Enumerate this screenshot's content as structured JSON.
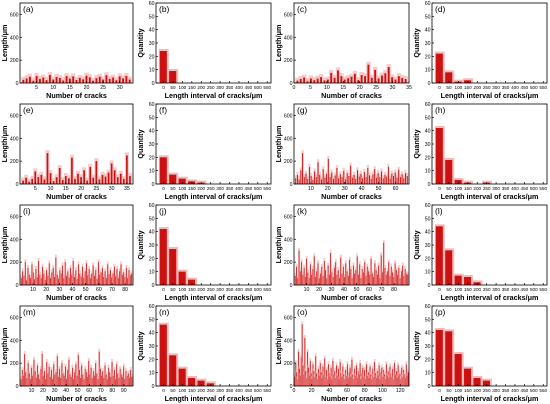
{
  "figure": {
    "colors": {
      "bar_dark": "#cc1111",
      "bar_light": "#f7b8b8",
      "axis": "#000000"
    }
  },
  "chart_data": [
    {
      "panel": "a",
      "type": "bar",
      "xlabel": "Number of cracks",
      "ylabel": "Length/μm",
      "xticks": [
        5,
        10,
        15,
        20,
        25,
        30
      ],
      "yticks": [
        0,
        200,
        400,
        600
      ],
      "xlim": [
        0,
        34
      ],
      "ylim": [
        0,
        700
      ],
      "n": 33,
      "values": [
        28,
        40,
        55,
        20,
        62,
        35,
        48,
        25,
        70,
        30,
        52,
        44,
        22,
        60,
        38,
        58,
        26,
        45,
        32,
        64,
        50,
        20,
        42,
        55,
        30,
        68,
        36,
        48,
        24,
        58,
        40,
        62,
        30
      ]
    },
    {
      "panel": "b",
      "type": "bar",
      "xlabel": "Length interval of cracks/μm",
      "ylabel": "Quantity",
      "categories": [
        0,
        50,
        100,
        150,
        200,
        250,
        300,
        350,
        400,
        450,
        500,
        550
      ],
      "yticks": [
        0,
        10,
        20,
        30,
        40,
        50,
        60
      ],
      "ylim": [
        0,
        60
      ],
      "values": [
        24,
        9,
        0,
        0,
        0,
        0,
        0,
        0,
        0,
        0,
        0,
        0
      ]
    },
    {
      "panel": "c",
      "type": "bar",
      "xlabel": "Number of cracks",
      "ylabel": "Length/μm",
      "xticks": [
        0,
        5,
        10,
        15,
        20,
        25,
        30,
        35
      ],
      "yticks": [
        0,
        200,
        400,
        600
      ],
      "xlim": [
        0,
        35
      ],
      "ylim": [
        0,
        700
      ],
      "n": 33,
      "values": [
        20,
        35,
        48,
        15,
        40,
        25,
        38,
        52,
        22,
        30,
        88,
        45,
        110,
        60,
        30,
        42,
        55,
        80,
        25,
        70,
        60,
        160,
        45,
        115,
        40,
        65,
        85,
        140,
        50,
        30,
        60,
        45,
        35
      ]
    },
    {
      "panel": "d",
      "type": "bar",
      "xlabel": "Length interval of cracks/μm",
      "ylabel": "Quantity",
      "categories": [
        0,
        50,
        100,
        150,
        200,
        250,
        300,
        350,
        400,
        450,
        500,
        550
      ],
      "yticks": [
        0,
        10,
        20,
        30,
        40,
        50,
        60
      ],
      "ylim": [
        0,
        60
      ],
      "values": [
        22,
        8,
        1,
        2,
        0,
        0,
        0,
        0,
        0,
        0,
        0,
        0
      ]
    },
    {
      "panel": "e",
      "type": "bar",
      "xlabel": "Number of cracks",
      "ylabel": "Length/μm",
      "xticks": [
        5,
        10,
        15,
        20,
        25,
        30,
        35
      ],
      "yticks": [
        0,
        200,
        400,
        600
      ],
      "xlim": [
        0,
        37
      ],
      "ylim": [
        0,
        700
      ],
      "n": 36,
      "values": [
        30,
        55,
        20,
        45,
        110,
        60,
        80,
        40,
        270,
        95,
        25,
        60,
        140,
        35,
        70,
        50,
        230,
        45,
        90,
        60,
        120,
        30,
        150,
        55,
        200,
        40,
        80,
        65,
        100,
        180,
        120,
        60,
        90,
        45,
        250,
        70
      ]
    },
    {
      "panel": "f",
      "type": "bar",
      "xlabel": "Length interval of cracks/μm",
      "ylabel": "Quantity",
      "categories": [
        0,
        50,
        100,
        150,
        200,
        250,
        300,
        350,
        400,
        450,
        500,
        550
      ],
      "yticks": [
        0,
        10,
        20,
        30,
        40,
        50,
        60
      ],
      "ylim": [
        0,
        60
      ],
      "values": [
        20,
        7,
        4,
        2,
        1,
        0,
        0,
        0,
        0,
        0,
        0,
        0
      ]
    },
    {
      "panel": "g",
      "type": "bar",
      "xlabel": "Number of cracks",
      "ylabel": "Length/μm",
      "xticks": [
        10,
        20,
        30,
        40,
        50,
        60
      ],
      "yticks": [
        0,
        200,
        400,
        600
      ],
      "xlim": [
        0,
        68
      ],
      "ylim": [
        0,
        700
      ],
      "n": 66,
      "values": [
        50,
        80,
        40,
        120,
        270,
        60,
        90,
        45,
        150,
        70,
        35,
        110,
        60,
        190,
        80,
        40,
        130,
        55,
        90,
        220,
        60,
        100,
        45,
        75,
        140,
        50,
        85,
        60,
        115,
        40,
        95,
        70,
        160,
        55,
        80,
        45,
        120,
        65,
        90,
        50,
        105,
        60,
        140,
        75,
        45,
        85,
        130,
        55,
        95,
        60,
        110,
        50,
        80,
        65,
        150,
        45,
        90,
        70,
        100,
        55,
        125,
        60,
        85,
        50,
        95,
        70
      ]
    },
    {
      "panel": "h",
      "type": "bar",
      "xlabel": "Length interval of cracks/μm",
      "ylabel": "Quantity",
      "categories": [
        0,
        50,
        100,
        150,
        200,
        250,
        300,
        350,
        400,
        450,
        500,
        550
      ],
      "yticks": [
        0,
        10,
        20,
        30,
        40,
        50,
        60
      ],
      "ylim": [
        0,
        60
      ],
      "values": [
        42,
        18,
        3,
        1,
        0,
        1,
        0,
        0,
        0,
        0,
        0,
        0
      ]
    },
    {
      "panel": "i",
      "type": "bar",
      "xlabel": "Number of cracks",
      "ylabel": "Length/μm",
      "xticks": [
        10,
        20,
        30,
        40,
        50,
        60,
        70,
        80
      ],
      "yticks": [
        0,
        200,
        400,
        600
      ],
      "xlim": [
        0,
        86
      ],
      "ylim": [
        0,
        700
      ],
      "n": 84,
      "values": [
        60,
        120,
        80,
        200,
        40,
        150,
        90,
        60,
        180,
        110,
        50,
        140,
        70,
        210,
        90,
        60,
        160,
        100,
        45,
        130,
        80,
        190,
        60,
        110,
        150,
        70,
        240,
        90,
        55,
        130,
        100,
        170,
        60,
        200,
        80,
        120,
        65,
        150,
        90,
        210,
        70,
        130,
        55,
        180,
        100,
        75,
        160,
        60,
        120,
        190,
        85,
        140,
        60,
        100,
        170,
        80,
        130,
        55,
        200,
        90,
        110,
        150,
        70,
        120,
        60,
        180,
        95,
        130,
        65,
        100,
        160,
        75,
        140,
        60,
        120,
        180,
        90,
        110,
        70,
        150,
        60,
        130,
        85,
        100
      ]
    },
    {
      "panel": "j",
      "type": "bar",
      "xlabel": "Length interval of cracks/μm",
      "ylabel": "Quantity",
      "categories": [
        0,
        50,
        100,
        150,
        200,
        250,
        300,
        350,
        400,
        450,
        500,
        550
      ],
      "yticks": [
        0,
        10,
        20,
        30,
        40,
        50,
        60
      ],
      "ylim": [
        0,
        60
      ],
      "values": [
        42,
        27,
        10,
        4,
        0,
        0,
        0,
        0,
        0,
        0,
        0,
        0
      ]
    },
    {
      "panel": "k",
      "type": "bar",
      "xlabel": "Number of cracks",
      "ylabel": "Length/μm",
      "xticks": [
        10,
        20,
        30,
        40,
        50,
        60,
        70,
        80
      ],
      "yticks": [
        0,
        200,
        400,
        600
      ],
      "xlim": [
        0,
        92
      ],
      "ylim": [
        0,
        700
      ],
      "n": 90,
      "values": [
        80,
        160,
        60,
        300,
        120,
        200,
        90,
        150,
        70,
        230,
        110,
        60,
        180,
        90,
        140,
        250,
        70,
        120,
        190,
        60,
        100,
        160,
        80,
        210,
        130,
        60,
        170,
        90,
        280,
        110,
        70,
        150,
        200,
        90,
        130,
        60,
        240,
        100,
        160,
        70,
        190,
        120,
        80,
        220,
        140,
        60,
        170,
        100,
        130,
        250,
        90,
        180,
        60,
        140,
        110,
        200,
        80,
        160,
        120,
        90,
        230,
        100,
        70,
        190,
        130,
        90,
        170,
        60,
        260,
        110,
        370,
        150,
        90,
        120,
        200,
        80,
        160,
        110,
        70,
        190,
        130,
        90,
        150,
        60,
        120,
        170,
        80,
        140,
        100,
        90
      ]
    },
    {
      "panel": "l",
      "type": "bar",
      "xlabel": "Length interval of cracks/μm",
      "ylabel": "Quantity",
      "categories": [
        0,
        50,
        100,
        150,
        200,
        250,
        300,
        350,
        400,
        450,
        500,
        550
      ],
      "yticks": [
        0,
        10,
        20,
        30,
        40,
        50,
        60
      ],
      "ylim": [
        0,
        60
      ],
      "values": [
        44,
        26,
        7,
        6,
        2,
        0,
        0,
        0,
        0,
        0,
        0,
        0
      ]
    },
    {
      "panel": "m",
      "type": "bar",
      "xlabel": "Number of cracks",
      "ylabel": "Length/μm",
      "xticks": [
        10,
        20,
        30,
        40,
        50,
        60,
        70,
        80,
        90
      ],
      "yticks": [
        0,
        200,
        400,
        600
      ],
      "xlim": [
        0,
        98
      ],
      "ylim": [
        0,
        700
      ],
      "n": 96,
      "values": [
        60,
        140,
        90,
        280,
        120,
        70,
        200,
        110,
        60,
        160,
        90,
        230,
        130,
        70,
        180,
        100,
        60,
        150,
        280,
        90,
        130,
        60,
        210,
        110,
        170,
        80,
        140,
        60,
        190,
        100,
        120,
        260,
        80,
        150,
        70,
        200,
        110,
        90,
        170,
        60,
        140,
        230,
        100,
        80,
        160,
        60,
        120,
        190,
        90,
        270,
        140,
        70,
        180,
        100,
        60,
        150,
        120,
        80,
        220,
        100,
        160,
        70,
        130,
        90,
        200,
        110,
        60,
        300,
        150,
        90,
        130,
        70,
        180,
        100,
        60,
        160,
        120,
        80,
        210,
        90,
        140,
        60,
        190,
        110,
        70,
        150,
        100,
        80,
        170,
        60,
        130,
        90,
        110,
        70,
        140,
        80
      ]
    },
    {
      "panel": "n",
      "type": "bar",
      "xlabel": "Length interval of cracks/μm",
      "ylabel": "Quantity",
      "categories": [
        0,
        50,
        100,
        150,
        200,
        250,
        300,
        350,
        400,
        450,
        500,
        550
      ],
      "yticks": [
        0,
        10,
        20,
        30,
        40,
        50,
        60
      ],
      "ylim": [
        0,
        60
      ],
      "values": [
        46,
        23,
        13,
        6,
        4,
        2,
        0,
        0,
        0,
        0,
        0,
        0
      ]
    },
    {
      "panel": "o",
      "type": "bar",
      "xlabel": "Number of cracks",
      "ylabel": "Length/μm",
      "xticks": [
        0,
        20,
        40,
        60,
        80,
        100,
        120
      ],
      "yticks": [
        0,
        200,
        400,
        600
      ],
      "xlim": [
        0,
        130
      ],
      "ylim": [
        0,
        700
      ],
      "n": 126,
      "values": [
        80,
        200,
        120,
        60,
        300,
        150,
        90,
        250,
        540,
        180,
        100,
        420,
        130,
        70,
        300,
        160,
        90,
        220,
        110,
        60,
        190,
        130,
        80,
        260,
        110,
        60,
        150,
        90,
        200,
        120,
        70,
        170,
        100,
        240,
        80,
        140,
        60,
        190,
        110,
        80,
        160,
        60,
        220,
        100,
        130,
        70,
        180,
        90,
        150,
        60,
        210,
        110,
        80,
        170,
        100,
        60,
        140,
        90,
        190,
        70,
        120,
        160,
        80,
        230,
        100,
        60,
        150,
        90,
        180,
        70,
        130,
        100,
        200,
        60,
        110,
        160,
        80,
        140,
        60,
        190,
        90,
        120,
        70,
        170,
        100,
        60,
        150,
        80,
        210,
        110,
        70,
        130,
        90,
        180,
        60,
        120,
        160,
        80,
        140,
        100,
        60,
        190,
        90,
        130,
        70,
        170,
        110,
        80,
        150,
        60,
        200,
        100,
        130,
        70,
        180,
        90,
        110,
        60,
        160,
        80,
        140,
        100,
        70,
        190,
        90,
        120
      ]
    },
    {
      "panel": "p",
      "type": "bar",
      "xlabel": "Length interval of cracks/μm",
      "ylabel": "Quantity",
      "categories": [
        0,
        50,
        100,
        150,
        200,
        250,
        300,
        350,
        400,
        450,
        500,
        550
      ],
      "yticks": [
        0,
        10,
        20,
        30,
        40,
        50,
        60
      ],
      "ylim": [
        0,
        60
      ],
      "values": [
        42,
        41,
        24,
        13,
        6,
        4,
        0,
        0,
        0,
        0,
        0,
        0
      ]
    }
  ]
}
